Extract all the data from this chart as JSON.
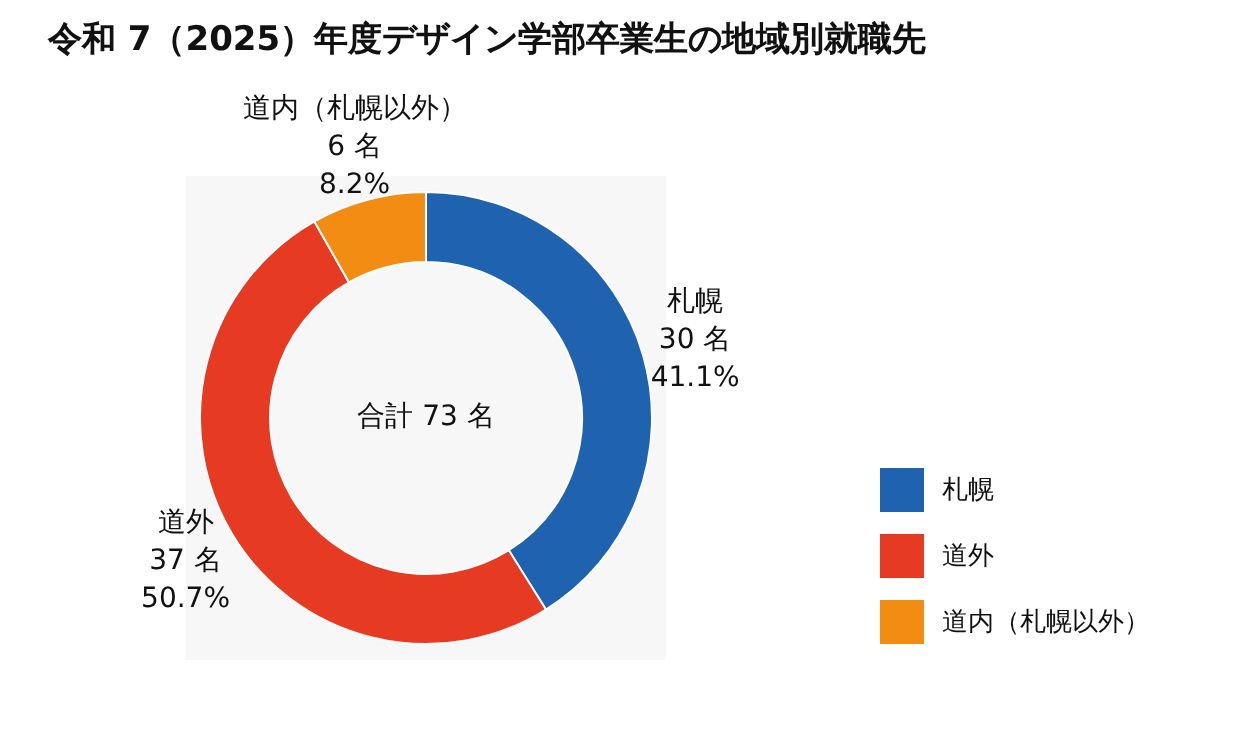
{
  "chart_data": {
    "type": "donut",
    "title": "令和 7（2025）年度デザイン学部卒業生の地域別就職先",
    "categories": [
      "札幌",
      "道外",
      "道内（札幌以外）"
    ],
    "values": [
      30,
      37,
      6
    ],
    "colors": [
      "#1f63b0",
      "#e63a23",
      "#f28c12"
    ],
    "value_labels": [
      "30 名\n41.1%",
      "37 名\n50.7%",
      "6 名\n8.2%"
    ],
    "annotations": [
      "合計 73 名"
    ],
    "legend": "right"
  }
}
